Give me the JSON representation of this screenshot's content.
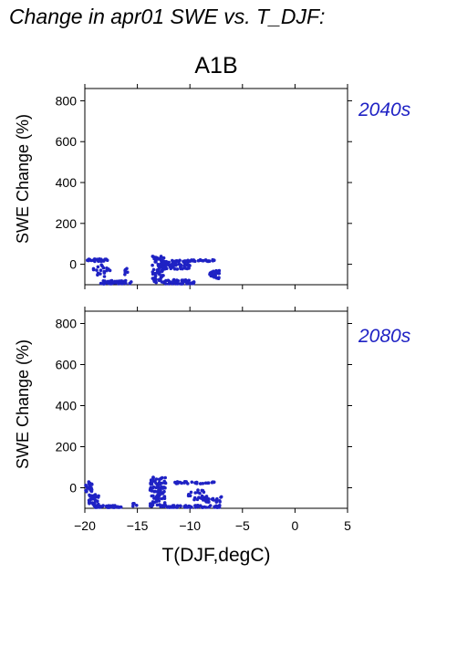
{
  "title": "Change in apr01 SWE vs. T_DJF:",
  "subtitle": "A1B",
  "colors": {
    "points": "#1f22c4",
    "axes": "#000000",
    "period_label": "#1f22c4"
  },
  "chart_data": [
    {
      "type": "scatter",
      "period_label": "2040s",
      "xlabel": "",
      "ylabel": "SWE Change (%)",
      "xlim": [
        -20,
        5
      ],
      "ylim": [
        -100,
        860
      ],
      "y_ticks": [
        "0",
        "200",
        "400",
        "600",
        "800"
      ],
      "x_ticks_labeled": false,
      "clusters": [
        {
          "x": [
            -20,
            -17.8
          ],
          "y": [
            14,
            26
          ],
          "n": 30
        },
        {
          "x": [
            -19.2,
            -17.6
          ],
          "y": [
            -60,
            0
          ],
          "n": 18
        },
        {
          "x": [
            -18.5,
            -15.5
          ],
          "y": [
            -100,
            -80
          ],
          "n": 40
        },
        {
          "x": [
            -16.3,
            -15.8
          ],
          "y": [
            -60,
            -20
          ],
          "n": 6
        },
        {
          "x": [
            -13.6,
            -12.4
          ],
          "y": [
            -90,
            40
          ],
          "n": 70
        },
        {
          "x": [
            -12.6,
            -10
          ],
          "y": [
            -25,
            20
          ],
          "n": 60
        },
        {
          "x": [
            -12.5,
            -9.5
          ],
          "y": [
            -98,
            -75
          ],
          "n": 45
        },
        {
          "x": [
            -10.5,
            -7.5
          ],
          "y": [
            14,
            22
          ],
          "n": 25
        },
        {
          "x": [
            -8.2,
            -7.2
          ],
          "y": [
            -70,
            -30
          ],
          "n": 25
        }
      ]
    },
    {
      "type": "scatter",
      "period_label": "2080s",
      "xlabel": "T(DJF,degC)",
      "ylabel": "SWE Change (%)",
      "xlim": [
        -20,
        5
      ],
      "ylim": [
        -100,
        860
      ],
      "y_ticks": [
        "0",
        "200",
        "400",
        "600",
        "800"
      ],
      "x_ticks": [
        "−20",
        "−15",
        "−10",
        "−5",
        "0",
        "5"
      ],
      "x_tick_values": [
        -20,
        -15,
        -10,
        -5,
        0,
        5
      ],
      "clusters": [
        {
          "x": [
            -20,
            -19.3
          ],
          "y": [
            -20,
            30
          ],
          "n": 25
        },
        {
          "x": [
            -19.6,
            -18.6
          ],
          "y": [
            -90,
            -30
          ],
          "n": 30
        },
        {
          "x": [
            -19,
            -16.5
          ],
          "y": [
            -100,
            -85
          ],
          "n": 40
        },
        {
          "x": [
            -15.5,
            -15
          ],
          "y": [
            -90,
            -70
          ],
          "n": 5
        },
        {
          "x": [
            -13.8,
            -12.3
          ],
          "y": [
            -95,
            55
          ],
          "n": 90
        },
        {
          "x": [
            -12.5,
            -7
          ],
          "y": [
            -100,
            -85
          ],
          "n": 60
        },
        {
          "x": [
            -11.5,
            -7.5
          ],
          "y": [
            20,
            30
          ],
          "n": 28
        },
        {
          "x": [
            -10.5,
            -8.5
          ],
          "y": [
            -60,
            -10
          ],
          "n": 20
        },
        {
          "x": [
            -8.5,
            -6.9
          ],
          "y": [
            -70,
            -40
          ],
          "n": 25
        }
      ]
    }
  ]
}
